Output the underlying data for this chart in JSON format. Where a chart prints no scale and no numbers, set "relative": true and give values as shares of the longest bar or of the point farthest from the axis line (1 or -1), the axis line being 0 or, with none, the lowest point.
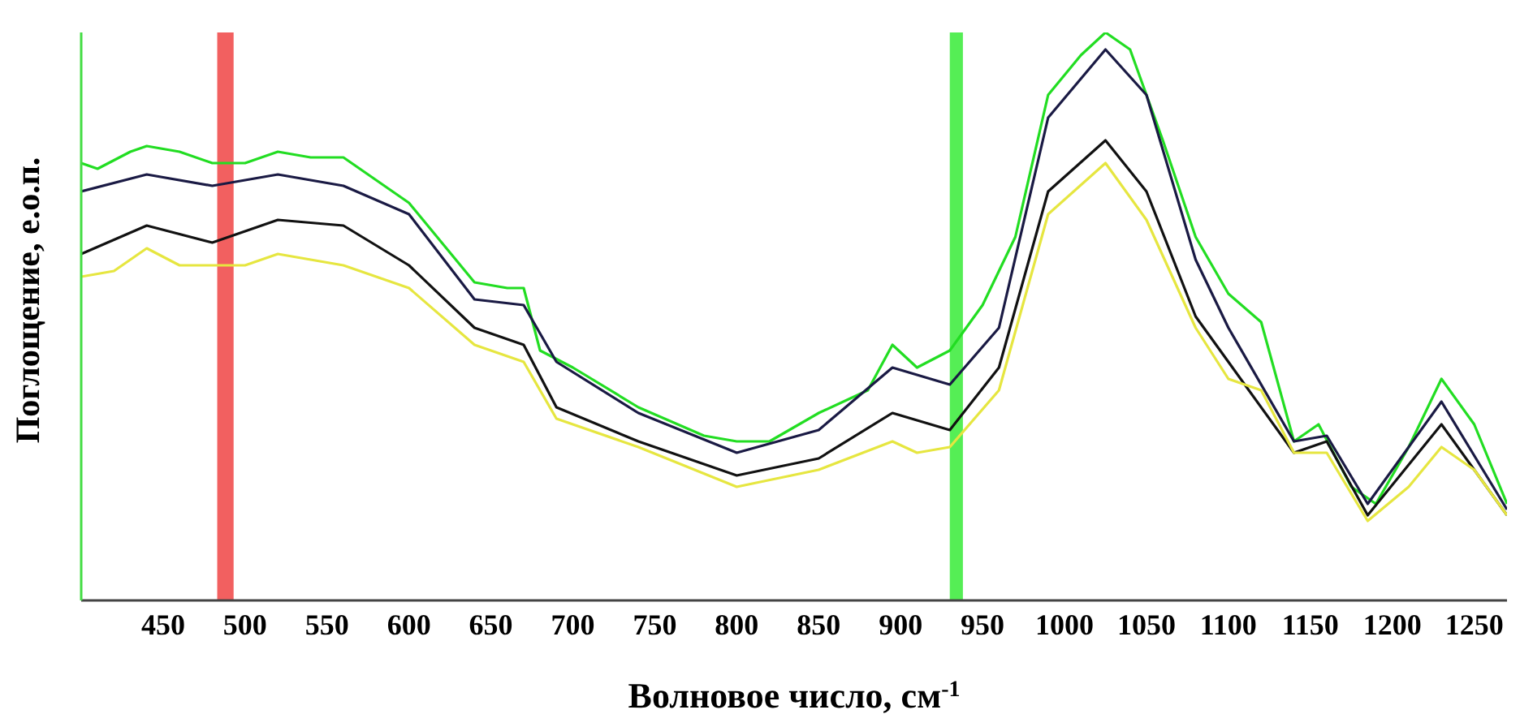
{
  "chart_data": {
    "type": "line",
    "relative": true,
    "xlabel": "Волновое число, см$^{-1}$",
    "ylabel": "Поглощение, е.о.п.",
    "xlim": [
      400,
      1270
    ],
    "xticks": [
      450,
      500,
      550,
      600,
      650,
      700,
      750,
      800,
      850,
      900,
      950,
      1000,
      1050,
      1100,
      1150,
      1200,
      1250
    ],
    "series": [
      {
        "color": "#22dd22",
        "x": [
          400,
          410,
          430,
          440,
          460,
          480,
          500,
          520,
          540,
          560,
          580,
          600,
          620,
          640,
          660,
          670,
          680,
          700,
          740,
          780,
          800,
          820,
          850,
          880,
          895,
          910,
          930,
          950,
          970,
          990,
          1010,
          1025,
          1040,
          1060,
          1080,
          1100,
          1120,
          1140,
          1155,
          1175,
          1190,
          1210,
          1230,
          1250,
          1270
        ],
        "values": [
          0.77,
          0.76,
          0.79,
          0.8,
          0.79,
          0.77,
          0.77,
          0.79,
          0.78,
          0.78,
          0.74,
          0.7,
          0.63,
          0.56,
          0.55,
          0.55,
          0.44,
          0.41,
          0.34,
          0.29,
          0.28,
          0.28,
          0.33,
          0.37,
          0.45,
          0.41,
          0.44,
          0.52,
          0.64,
          0.89,
          0.96,
          1.0,
          0.97,
          0.81,
          0.64,
          0.54,
          0.49,
          0.28,
          0.31,
          0.2,
          0.17,
          0.27,
          0.39,
          0.31,
          0.17
        ]
      },
      {
        "color": "#1a1a44",
        "x": [
          400,
          440,
          480,
          520,
          560,
          600,
          640,
          670,
          690,
          740,
          800,
          850,
          895,
          930,
          960,
          990,
          1025,
          1050,
          1080,
          1100,
          1140,
          1160,
          1185,
          1230,
          1270
        ],
        "values": [
          0.72,
          0.75,
          0.73,
          0.75,
          0.73,
          0.68,
          0.53,
          0.52,
          0.42,
          0.33,
          0.26,
          0.3,
          0.41,
          0.38,
          0.48,
          0.85,
          0.97,
          0.89,
          0.6,
          0.48,
          0.28,
          0.29,
          0.17,
          0.35,
          0.16
        ]
      },
      {
        "color": "#111111",
        "x": [
          400,
          440,
          480,
          520,
          560,
          600,
          640,
          670,
          690,
          740,
          800,
          850,
          895,
          930,
          960,
          990,
          1025,
          1050,
          1080,
          1100,
          1140,
          1160,
          1185,
          1230,
          1270
        ],
        "values": [
          0.61,
          0.66,
          0.63,
          0.67,
          0.66,
          0.59,
          0.48,
          0.45,
          0.34,
          0.28,
          0.22,
          0.25,
          0.33,
          0.3,
          0.41,
          0.72,
          0.81,
          0.72,
          0.5,
          0.42,
          0.26,
          0.28,
          0.15,
          0.31,
          0.15
        ]
      },
      {
        "color": "#e6e640",
        "x": [
          400,
          420,
          440,
          460,
          500,
          520,
          560,
          600,
          640,
          670,
          690,
          740,
          800,
          850,
          895,
          910,
          930,
          960,
          990,
          1025,
          1050,
          1080,
          1100,
          1120,
          1140,
          1160,
          1185,
          1210,
          1230,
          1250,
          1270
        ],
        "values": [
          0.57,
          0.58,
          0.62,
          0.59,
          0.59,
          0.61,
          0.59,
          0.55,
          0.45,
          0.42,
          0.32,
          0.27,
          0.2,
          0.23,
          0.28,
          0.26,
          0.27,
          0.37,
          0.68,
          0.77,
          0.67,
          0.48,
          0.39,
          0.37,
          0.26,
          0.26,
          0.14,
          0.2,
          0.27,
          0.23,
          0.15
        ]
      }
    ],
    "bands": [
      {
        "axis": "x",
        "from": 483,
        "to": 493,
        "color": "#f26060"
      },
      {
        "axis": "x",
        "from": 930,
        "to": 938,
        "color": "#55ee55"
      }
    ]
  }
}
